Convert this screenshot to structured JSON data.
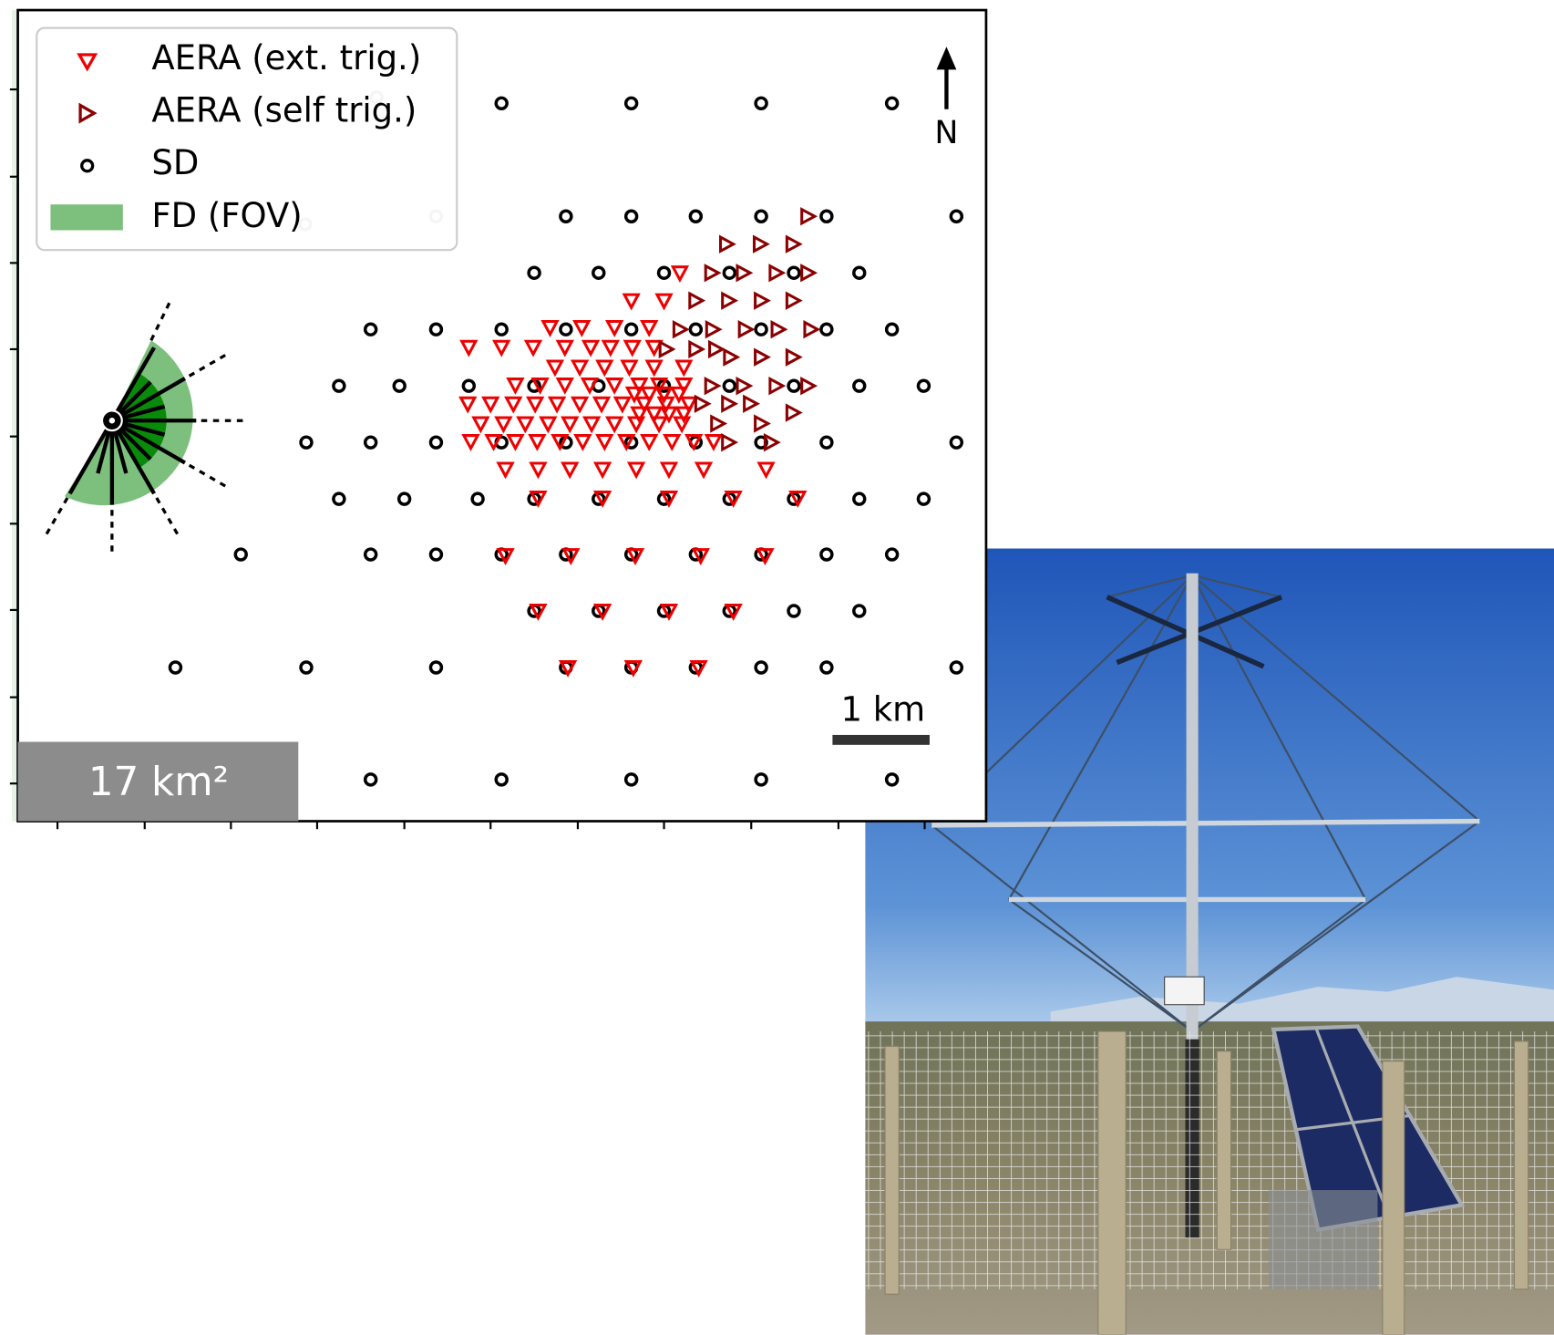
{
  "legend": {
    "items": [
      "AERA (ext. trig.)",
      "AERA (self trig.)",
      "SD",
      "FD (FOV)"
    ]
  },
  "north_label": "N",
  "scale_label": "1 km",
  "area_label": "17 km²"
}
